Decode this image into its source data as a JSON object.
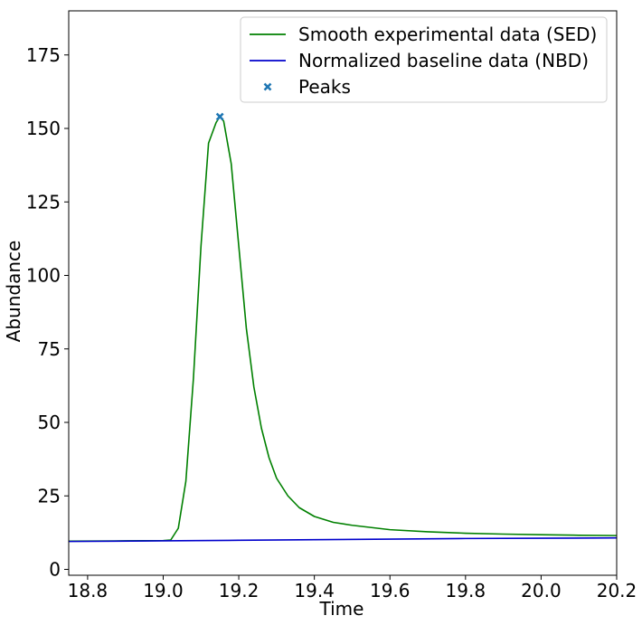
{
  "chart_data": {
    "type": "line",
    "xlabel": "Time",
    "ylabel": "Abundance",
    "xlim": [
      18.75,
      20.2
    ],
    "ylim": [
      -2,
      190
    ],
    "x_ticks": [
      18.8,
      19.0,
      19.2,
      19.4,
      19.6,
      19.8,
      20.0,
      20.2
    ],
    "x_tick_labels": [
      "18.8",
      "19.0",
      "19.2",
      "19.4",
      "19.6",
      "19.8",
      "20.0",
      "20.2"
    ],
    "y_ticks": [
      0,
      25,
      50,
      75,
      100,
      125,
      150,
      175
    ],
    "y_tick_labels": [
      "0",
      "25",
      "50",
      "75",
      "100",
      "125",
      "150",
      "175"
    ],
    "grid": false,
    "legend_position": "top-right",
    "series": [
      {
        "name": "Smooth experimental data (SED)",
        "color": "#008000",
        "kind": "line",
        "x": [
          18.75,
          18.9,
          19.0,
          19.02,
          19.04,
          19.06,
          19.08,
          19.1,
          19.12,
          19.14,
          19.15,
          19.16,
          19.18,
          19.2,
          19.22,
          19.24,
          19.26,
          19.28,
          19.3,
          19.33,
          19.36,
          19.4,
          19.45,
          19.5,
          19.6,
          19.7,
          19.8,
          19.9,
          20.0,
          20.1,
          20.2
        ],
        "y": [
          9.6,
          9.7,
          9.8,
          10.0,
          14.0,
          30.0,
          65.0,
          110.0,
          145.0,
          152.0,
          154.0,
          152.5,
          138.0,
          110.0,
          82.0,
          62.0,
          48.0,
          38.0,
          31.0,
          25.0,
          21.0,
          18.0,
          16.0,
          15.0,
          13.5,
          12.8,
          12.3,
          12.0,
          11.8,
          11.6,
          11.5
        ]
      },
      {
        "name": "Normalized baseline data (NBD)",
        "color": "#0000cc",
        "kind": "line",
        "x": [
          18.75,
          19.0,
          19.2,
          19.4,
          19.6,
          19.8,
          20.0,
          20.2
        ],
        "y": [
          9.5,
          9.7,
          9.9,
          10.1,
          10.3,
          10.5,
          10.6,
          10.7
        ]
      },
      {
        "name": "Peaks",
        "color": "#1f77b4",
        "kind": "marker",
        "marker": "x",
        "x": [
          19.15
        ],
        "y": [
          154.0
        ]
      }
    ]
  }
}
